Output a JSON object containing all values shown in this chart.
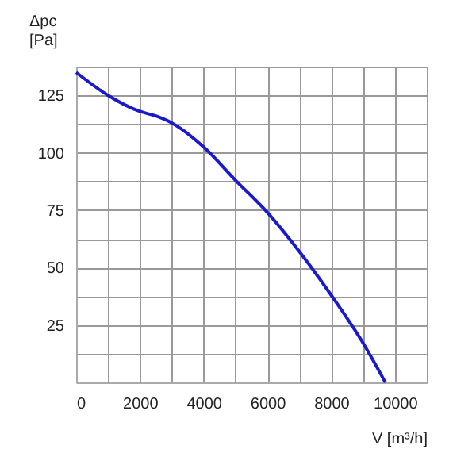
{
  "chart_data": {
    "type": "line",
    "xlabel": "V [m³/h]",
    "ylabel": "Δpc [Pa]",
    "x": [
      0,
      1000,
      2000,
      2500,
      3000,
      4000,
      5000,
      6000,
      7000,
      8000,
      9050,
      9700
    ],
    "series": [
      {
        "color": "#1a1acd",
        "values": [
          135,
          125,
          118,
          116,
          113,
          102.5,
          88,
          74,
          57,
          38,
          16,
          0
        ]
      }
    ],
    "xlim": [
      0,
      11000
    ],
    "xticks": [
      0,
      {
        "value": 1000,
        "label": null
      },
      2000,
      {
        "value": 3000,
        "label": null
      },
      4000,
      {
        "value": 5000,
        "label": null
      },
      6000,
      {
        "value": 7000,
        "label": null
      },
      8000,
      {
        "value": 9000,
        "label": null
      },
      10000,
      {
        "value": 11000,
        "label": null
      }
    ],
    "ylim": [
      0,
      137.5
    ],
    "yticks": [
      {
        "value": 0,
        "label": null
      },
      {
        "value": 12.5,
        "label": null
      },
      25,
      {
        "value": 37.5,
        "label": null
      },
      50,
      {
        "value": 62.5,
        "label": null
      },
      75,
      {
        "value": 87.5,
        "label": null
      },
      100,
      {
        "value": 112.5,
        "label": null
      },
      125,
      {
        "value": 137.5,
        "label": null
      }
    ],
    "grid": true,
    "marker": "none",
    "line_style": "solid"
  }
}
